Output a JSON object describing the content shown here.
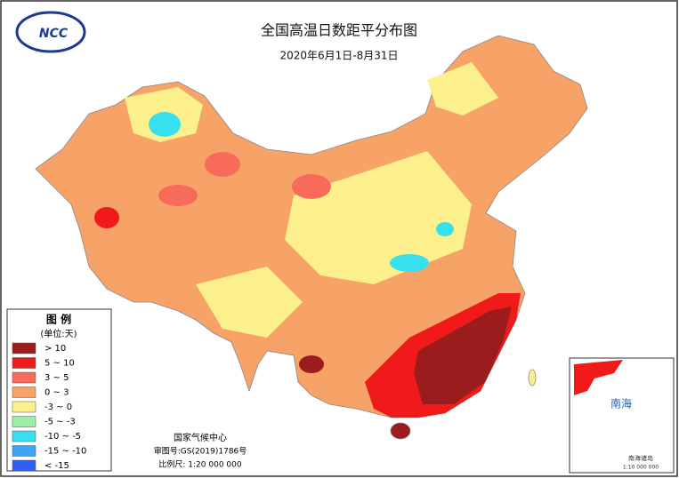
{
  "logo": "NCC",
  "header": {
    "title": "全国高温日数距平分布图",
    "subtitle": "2020年6月1日-8月31日"
  },
  "legend": {
    "title": "图 例",
    "unit": "(单位:天)",
    "items": [
      {
        "label": "> 10",
        "color": "#9b1c1c"
      },
      {
        "label": "5 ~ 10",
        "color": "#f01a1a"
      },
      {
        "label": "3 ~ 5",
        "color": "#f86a5a"
      },
      {
        "label": "0 ~ 3",
        "color": "#f7a266"
      },
      {
        "label": "-3 ~ 0",
        "color": "#fbf08c"
      },
      {
        "label": "-5 ~ -3",
        "color": "#9cefa6"
      },
      {
        "label": "-10 ~ -5",
        "color": "#36e0ee"
      },
      {
        "label": "-15 ~ -10",
        "color": "#3fa4f4"
      },
      {
        "label": "< -15",
        "color": "#2f5ef2"
      }
    ]
  },
  "footer": {
    "agency": "国家气候中心",
    "approval": "审图号:GS(2019)1786号",
    "scale": "比例尺: 1:20 000 000"
  },
  "inset": {
    "label": "南海",
    "caption": "南海诸岛",
    "scale": "1:10 000 000"
  }
}
